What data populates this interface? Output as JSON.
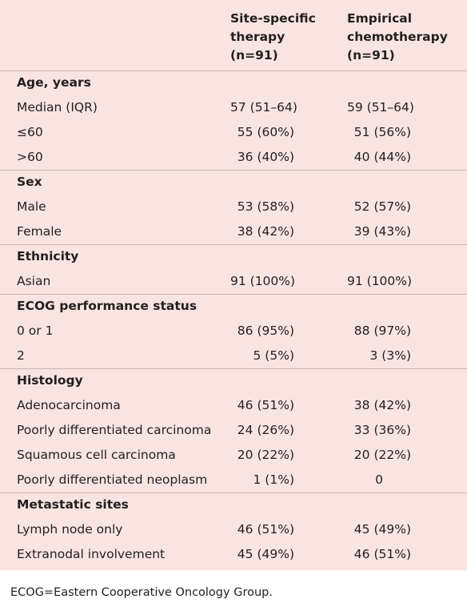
{
  "header": {
    "col1": "Site-specific\ntherapy\n(n=91)",
    "col2": "Empirical\nchemotherapy\n(n=91)"
  },
  "rows": [
    {
      "type": "section",
      "label": "Age, years"
    },
    {
      "type": "data",
      "label": "Median (IQR)",
      "v1": "57 (51–64)",
      "v2": "59 (51–64)"
    },
    {
      "type": "data",
      "label": "≤60",
      "v1": "55 (60%)",
      "v2": "51 (56%)"
    },
    {
      "type": "data",
      "label": ">60",
      "v1": "36 (40%)",
      "v2": "40 (44%)"
    },
    {
      "type": "section",
      "label": "Sex"
    },
    {
      "type": "data",
      "label": "Male",
      "v1": "53 (58%)",
      "v2": "52 (57%)"
    },
    {
      "type": "data",
      "label": "Female",
      "v1": "38 (42%)",
      "v2": "39 (43%)"
    },
    {
      "type": "section",
      "label": "Ethnicity"
    },
    {
      "type": "data",
      "label": "Asian",
      "v1": "91 (100%)",
      "v2": "91 (100%)"
    },
    {
      "type": "section",
      "label": "ECOG performance status"
    },
    {
      "type": "data",
      "label": "0 or 1",
      "v1": "86 (95%)",
      "v2": "88 (97%)"
    },
    {
      "type": "data",
      "label": "2",
      "v1": "5 (5%)",
      "v2": "3 (3%)"
    },
    {
      "type": "section",
      "label": "Histology"
    },
    {
      "type": "data",
      "label": "Adenocarcinoma",
      "v1": "46 (51%)",
      "v2": "38 (42%)"
    },
    {
      "type": "data",
      "label": "Poorly differentiated carcinoma",
      "v1": "24 (26%)",
      "v2": "33 (36%)"
    },
    {
      "type": "data",
      "label": "Squamous cell carcinoma",
      "v1": "20 (22%)",
      "v2": "20 (22%)"
    },
    {
      "type": "data",
      "label": "Poorly differentiated neoplasm",
      "v1": "1 (1%)",
      "v2": "0"
    },
    {
      "type": "section",
      "label": "Metastatic sites"
    },
    {
      "type": "data",
      "label": "Lymph node only",
      "v1": "46 (51%)",
      "v2": "45 (49%)"
    },
    {
      "type": "data",
      "label": "Extranodal involvement",
      "v1": "45 (49%)",
      "v2": "46 (51%)"
    }
  ],
  "footnote": "ECOG=Eastern Cooperative Oncology Group."
}
